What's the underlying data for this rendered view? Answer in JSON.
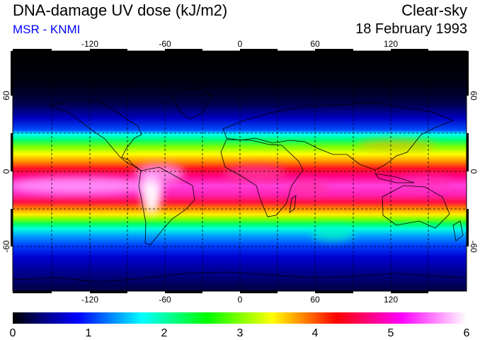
{
  "header": {
    "title": "DNA-damage UV dose (kJ/m2)",
    "source": "MSR - KNMI",
    "condition": "Clear-sky",
    "date": "18 February 1993"
  },
  "colors": {
    "source_text": "#0000ff",
    "scale": [
      "#000000",
      "#000088",
      "#0000ff",
      "#0080ff",
      "#00ffff",
      "#00ff80",
      "#00ff00",
      "#80ff00",
      "#ffff00",
      "#ff8000",
      "#ff0000",
      "#ff0080",
      "#ff00ff",
      "#ff80ff",
      "#ffffff"
    ]
  },
  "axes": {
    "lon_ticks": [
      "-120",
      "-60",
      "0",
      "60",
      "120"
    ],
    "lat_ticks": [
      "60",
      "0",
      "-60"
    ],
    "grid": "dashed, every 30 degrees"
  },
  "colorbar": {
    "ticks": [
      "0",
      "1",
      "2",
      "3",
      "4",
      "5",
      "6"
    ]
  }
}
